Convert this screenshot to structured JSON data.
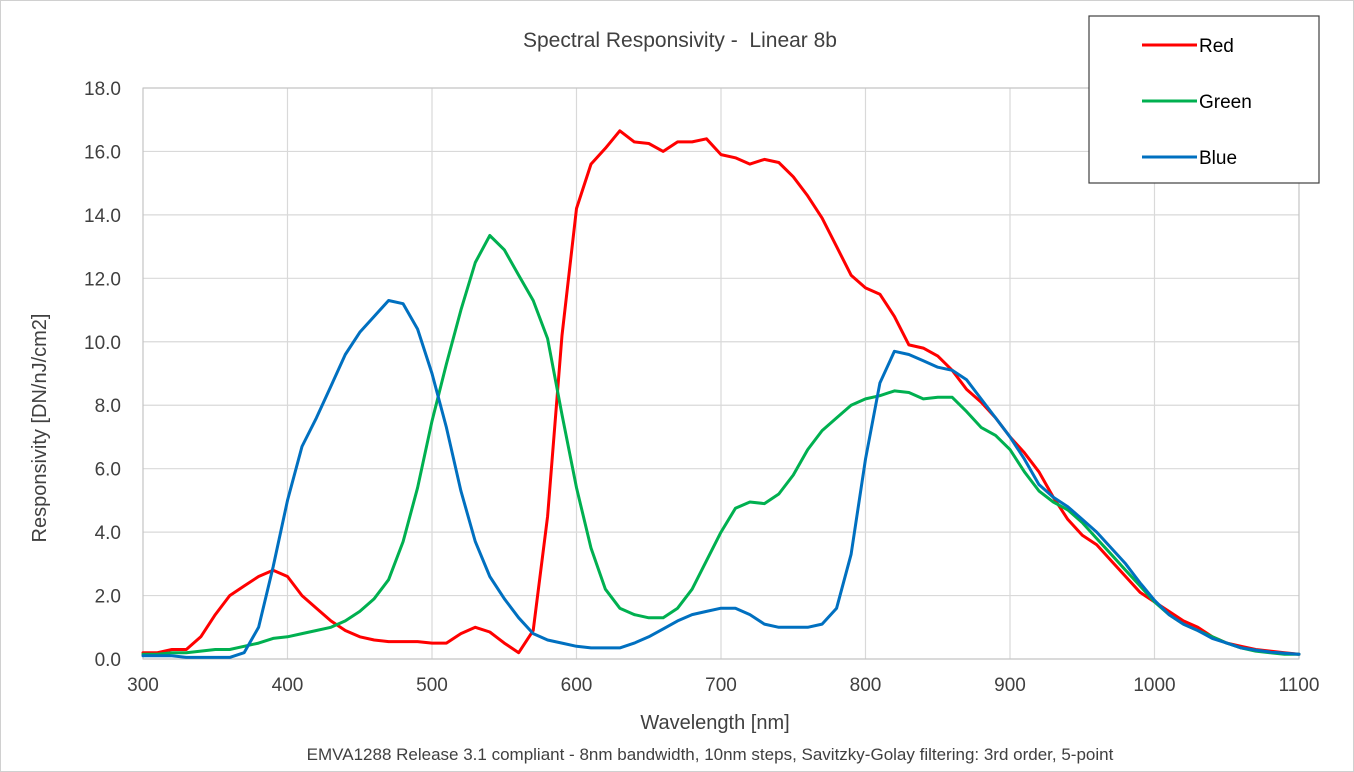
{
  "chart_data": {
    "type": "line",
    "title": "Spectral Responsivity -  Linear 8b",
    "xlabel": "Wavelength [nm]",
    "ylabel": "Responsivity [DN/nJ/cm2]",
    "footnote": "EMVA1288 Release 3.1 compliant - 8nm bandwidth, 10nm steps, Savitzky-Golay filtering: 3rd order, 5-point",
    "xlim": [
      300,
      1100
    ],
    "ylim": [
      0,
      18
    ],
    "xticks": [
      300,
      400,
      500,
      600,
      700,
      800,
      900,
      1000,
      1100
    ],
    "xtick_labels": [
      "300",
      "400",
      "500",
      "600",
      "700",
      "800",
      "900",
      "1000",
      "1100"
    ],
    "yticks": [
      0,
      2,
      4,
      6,
      8,
      10,
      12,
      14,
      16,
      18
    ],
    "ytick_labels": [
      "0.0",
      "2.0",
      "4.0",
      "6.0",
      "8.0",
      "10.0",
      "12.0",
      "14.0",
      "16.0",
      "18.0"
    ],
    "grid": true,
    "legend_position": "top-right",
    "x": [
      300,
      310,
      320,
      330,
      340,
      350,
      360,
      370,
      380,
      390,
      400,
      410,
      420,
      430,
      440,
      450,
      460,
      470,
      480,
      490,
      500,
      510,
      520,
      530,
      540,
      550,
      560,
      570,
      580,
      590,
      600,
      610,
      620,
      630,
      640,
      650,
      660,
      670,
      680,
      690,
      700,
      710,
      720,
      730,
      740,
      750,
      760,
      770,
      780,
      790,
      800,
      810,
      820,
      830,
      840,
      850,
      860,
      870,
      880,
      890,
      900,
      910,
      920,
      930,
      940,
      950,
      960,
      970,
      980,
      990,
      1000,
      1010,
      1020,
      1030,
      1040,
      1050,
      1060,
      1070,
      1080,
      1090,
      1100
    ],
    "series": [
      {
        "name": "Red",
        "color": "#ff0000",
        "values": [
          0.2,
          0.2,
          0.3,
          0.3,
          0.7,
          1.4,
          2.0,
          2.3,
          2.6,
          2.8,
          2.6,
          2.0,
          1.6,
          1.2,
          0.9,
          0.7,
          0.6,
          0.55,
          0.55,
          0.55,
          0.5,
          0.5,
          0.8,
          1.0,
          0.85,
          0.5,
          0.2,
          0.9,
          4.5,
          10.2,
          14.2,
          15.6,
          16.1,
          16.65,
          16.3,
          16.25,
          16.0,
          16.3,
          16.3,
          16.4,
          15.9,
          15.8,
          15.6,
          15.75,
          15.65,
          15.2,
          14.6,
          13.9,
          13.0,
          12.1,
          11.7,
          11.5,
          10.8,
          9.9,
          9.8,
          9.55,
          9.1,
          8.5,
          8.1,
          7.6,
          7.0,
          6.5,
          5.9,
          5.1,
          4.4,
          3.9,
          3.6,
          3.1,
          2.6,
          2.1,
          1.8,
          1.5,
          1.2,
          1.0,
          0.7,
          0.5,
          0.4,
          0.3,
          0.25,
          0.2,
          0.15
        ]
      },
      {
        "name": "Green",
        "color": "#00b050",
        "values": [
          0.15,
          0.15,
          0.2,
          0.2,
          0.25,
          0.3,
          0.3,
          0.4,
          0.5,
          0.65,
          0.7,
          0.8,
          0.9,
          1.0,
          1.2,
          1.5,
          1.9,
          2.5,
          3.7,
          5.4,
          7.5,
          9.3,
          11.0,
          12.5,
          13.35,
          12.9,
          12.1,
          11.3,
          10.1,
          7.7,
          5.4,
          3.5,
          2.2,
          1.6,
          1.4,
          1.3,
          1.3,
          1.6,
          2.2,
          3.1,
          4.0,
          4.75,
          4.95,
          4.9,
          5.2,
          5.8,
          6.6,
          7.2,
          7.6,
          8.0,
          8.2,
          8.3,
          8.45,
          8.4,
          8.2,
          8.25,
          8.25,
          7.8,
          7.3,
          7.05,
          6.6,
          5.9,
          5.3,
          4.95,
          4.7,
          4.3,
          3.8,
          3.3,
          2.8,
          2.3,
          1.8,
          1.4,
          1.1,
          0.9,
          0.7,
          0.5,
          0.35,
          0.25,
          0.2,
          0.15,
          0.15
        ]
      },
      {
        "name": "Blue",
        "color": "#0070c0",
        "values": [
          0.1,
          0.1,
          0.1,
          0.05,
          0.05,
          0.05,
          0.05,
          0.2,
          1.0,
          2.9,
          5.0,
          6.7,
          7.6,
          8.6,
          9.6,
          10.3,
          10.8,
          11.3,
          11.2,
          10.4,
          9.0,
          7.3,
          5.3,
          3.7,
          2.6,
          1.9,
          1.3,
          0.8,
          0.6,
          0.5,
          0.4,
          0.35,
          0.35,
          0.35,
          0.5,
          0.7,
          0.95,
          1.2,
          1.4,
          1.5,
          1.6,
          1.6,
          1.4,
          1.1,
          1.0,
          1.0,
          1.0,
          1.1,
          1.6,
          3.3,
          6.3,
          8.7,
          9.7,
          9.6,
          9.4,
          9.2,
          9.1,
          8.8,
          8.2,
          7.6,
          7.0,
          6.3,
          5.5,
          5.1,
          4.8,
          4.4,
          4.0,
          3.5,
          3.0,
          2.4,
          1.85,
          1.4,
          1.1,
          0.9,
          0.65,
          0.5,
          0.35,
          0.28,
          0.22,
          0.18,
          0.15
        ]
      }
    ]
  }
}
